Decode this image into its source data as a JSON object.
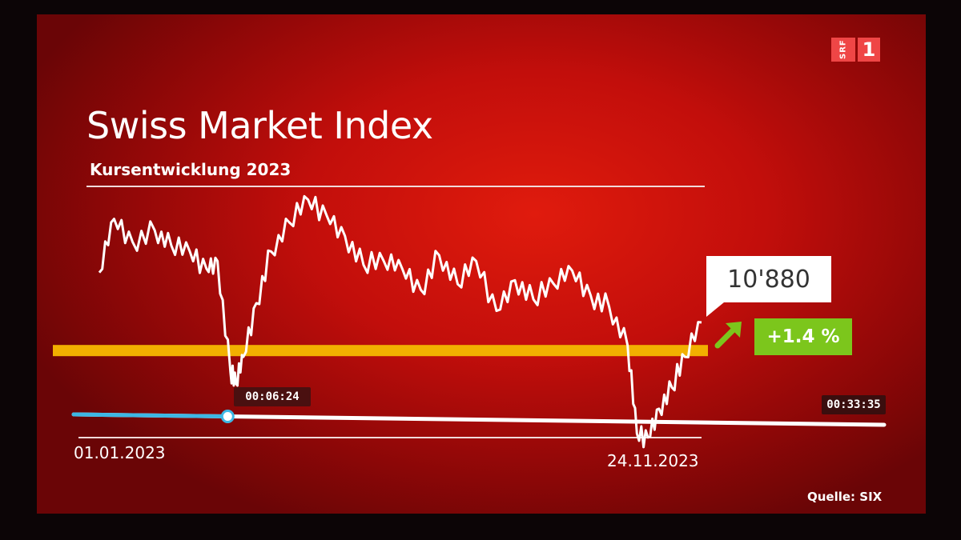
{
  "channel": {
    "brand": "SRF",
    "number": "1"
  },
  "graphic": {
    "title": "Swiss Market Index",
    "subtitle": "Kursentwicklung 2023",
    "source": "Quelle: SIX",
    "value_label": "10'880",
    "change_label": "+1.4 %",
    "colors": {
      "background": "#c20e0b",
      "reference_line": "#f2b000",
      "change_badge": "#7cc61c",
      "line": "#ffffff"
    }
  },
  "chart_data": {
    "type": "line",
    "title": "Swiss Market Index",
    "subtitle": "Kursentwicklung 2023",
    "x_start_label": "01.01.2023",
    "x_end_label": "24.11.2023",
    "x": [
      "2023-01-02",
      "2023-01-10",
      "2023-01-20",
      "2023-02-01",
      "2023-02-10",
      "2023-02-20",
      "2023-03-01",
      "2023-03-07",
      "2023-03-14",
      "2023-03-17",
      "2023-03-21",
      "2023-03-28",
      "2023-04-05",
      "2023-04-15",
      "2023-04-25",
      "2023-05-05",
      "2023-05-15",
      "2023-05-25",
      "2023-06-05",
      "2023-06-15",
      "2023-06-25",
      "2023-07-05",
      "2023-07-15",
      "2023-07-25",
      "2023-08-05",
      "2023-08-15",
      "2023-08-25",
      "2023-09-05",
      "2023-09-15",
      "2023-09-25",
      "2023-10-05",
      "2023-10-15",
      "2023-10-20",
      "2023-10-26",
      "2023-11-01",
      "2023-11-08",
      "2023-11-15",
      "2023-11-24"
    ],
    "values": [
      11140,
      11420,
      11300,
      11360,
      11280,
      11250,
      11160,
      11200,
      10620,
      10560,
      10700,
      10980,
      11250,
      11400,
      11520,
      11440,
      11330,
      11180,
      11200,
      11160,
      11050,
      11230,
      11080,
      11200,
      10940,
      11100,
      11000,
      11080,
      11150,
      11020,
      10960,
      10760,
      10300,
      10280,
      10430,
      10540,
      10700,
      10880
    ],
    "reference_value": 10733,
    "last_value": 10880,
    "change_percent": 1.4,
    "y_range": [
      10250,
      11560
    ],
    "grid": false
  },
  "player": {
    "current_time": "00:06:24",
    "total_time": "00:33:35",
    "progress": 0.19
  }
}
